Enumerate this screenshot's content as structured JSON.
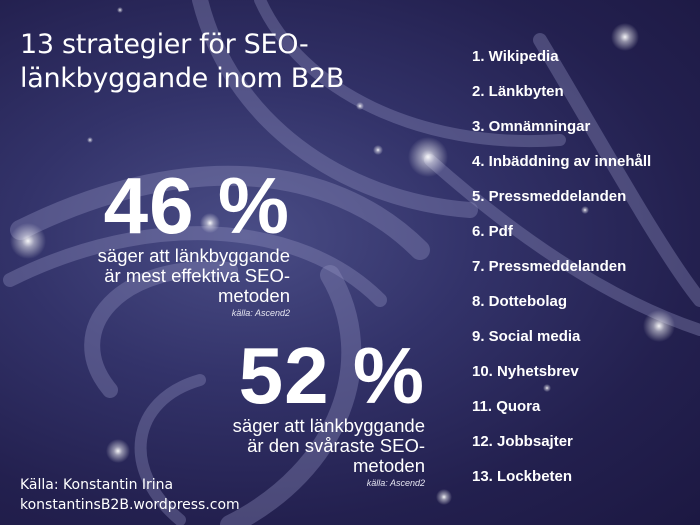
{
  "title": {
    "line1": "13 strategier för SEO-",
    "line2": "länkbyggande inom B2B"
  },
  "stats": [
    {
      "value": "46 %",
      "lines": [
        "säger att länkbyggande",
        "är mest effektiva SEO-",
        "metoden"
      ],
      "source": "källa: Ascend2"
    },
    {
      "value": "52 %",
      "lines": [
        "säger att länkbyggande",
        "är den svåraste SEO-",
        "metoden"
      ],
      "source": "källa: Ascend2"
    }
  ],
  "strategies": [
    "1. Wikipedia",
    "2. Länkbyten",
    "3. Omnämningar",
    "4. Inbäddning av innehåll",
    "5. Pressmeddelanden",
    "6. Pdf",
    "7. Pressmeddelanden",
    "8. Dottebolag",
    "9. Social media",
    "10. Nyhetsbrev",
    "11. Quora",
    "12. Jobbsajter",
    "13. Lockbeten"
  ],
  "source": {
    "line1": "Källa: Konstantin Irina",
    "line2": "konstantinsB2B.wordpress.com"
  },
  "colors": {
    "background": "#2a2860",
    "text": "#ffffff",
    "deco": "#8f90bf"
  }
}
